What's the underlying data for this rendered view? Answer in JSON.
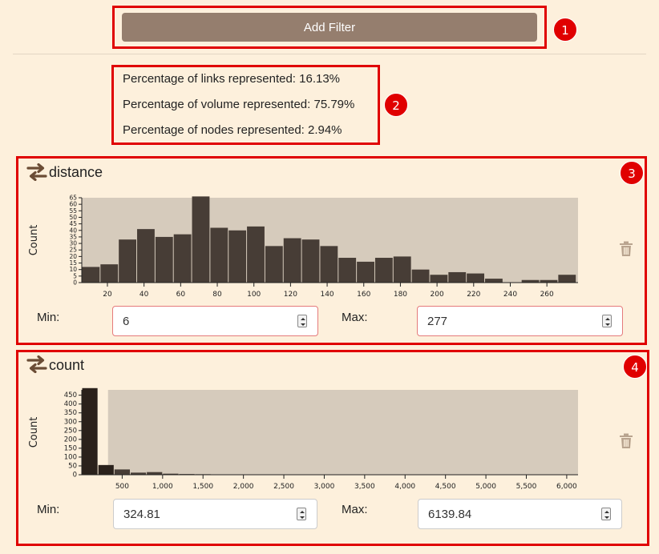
{
  "toolbar": {
    "add_filter_label": "Add Filter"
  },
  "badges": [
    "1",
    "2",
    "3",
    "4"
  ],
  "stats": {
    "links": "Percentage of links represented: 16.13%",
    "volume": "Percentage of volume represented: 75.79%",
    "nodes": "Percentage of nodes represented: 2.94%"
  },
  "filters": [
    {
      "title": "distance",
      "min_label": "Min:",
      "max_label": "Max:",
      "min_value": "6",
      "max_value": "277"
    },
    {
      "title": "count",
      "min_label": "Min:",
      "max_label": "Max:",
      "min_value": "324.81",
      "max_value": "6139.84"
    }
  ],
  "colors": {
    "accent": "#957e6e",
    "bar": "#473d36",
    "plot_bg": "#d6cbbc",
    "selected_bar": "#2a211b",
    "highlight": "#e00000",
    "icon": "#6b4c35",
    "trash": "#b9a48f"
  },
  "chart_data": [
    {
      "type": "bar",
      "title": "",
      "xlabel": "distance",
      "ylabel": "Count",
      "bin_width": 10,
      "x_start": 6,
      "xlim": [
        6,
        277
      ],
      "ylim": [
        0,
        65
      ],
      "x_ticks": [
        "20",
        "40",
        "60",
        "80",
        "100",
        "120",
        "140",
        "160",
        "180",
        "200",
        "220",
        "240",
        "260"
      ],
      "x_tick_values": [
        20,
        40,
        60,
        80,
        100,
        120,
        140,
        160,
        180,
        200,
        220,
        240,
        260
      ],
      "y_ticks": [
        "0",
        "5",
        "10",
        "15",
        "20",
        "25",
        "30",
        "35",
        "40",
        "45",
        "50",
        "55",
        "60",
        "65"
      ],
      "y_tick_values": [
        0,
        5,
        10,
        15,
        20,
        25,
        30,
        35,
        40,
        45,
        50,
        55,
        60,
        65
      ],
      "values": [
        12,
        14,
        33,
        41,
        35,
        37,
        66,
        42,
        40,
        43,
        28,
        34,
        33,
        28,
        19,
        16,
        19,
        20,
        10,
        6,
        8,
        7,
        3,
        0,
        2,
        2,
        6
      ]
    },
    {
      "type": "bar",
      "title": "",
      "xlabel": "count",
      "ylabel": "Count",
      "bin_width": 200,
      "x_start": 0,
      "xlim": [
        0,
        6139.84
      ],
      "ylim": [
        0,
        480
      ],
      "selected_range": [
        324.81,
        6139.84
      ],
      "x_ticks": [
        "500",
        "1,000",
        "1,500",
        "2,000",
        "2,500",
        "3,000",
        "3,500",
        "4,000",
        "4,500",
        "5,000",
        "5,500",
        "6,000"
      ],
      "x_tick_values": [
        500,
        1000,
        1500,
        2000,
        2500,
        3000,
        3500,
        4000,
        4500,
        5000,
        5500,
        6000
      ],
      "y_ticks": [
        "0",
        "50",
        "100",
        "150",
        "200",
        "250",
        "300",
        "350",
        "400",
        "450"
      ],
      "y_tick_values": [
        0,
        50,
        100,
        150,
        200,
        250,
        300,
        350,
        400,
        450
      ],
      "values": [
        490,
        55,
        30,
        12,
        15,
        6,
        4,
        3,
        2,
        1,
        1,
        1,
        0,
        1,
        0,
        0,
        1,
        0,
        0,
        0,
        0,
        0,
        0,
        0,
        0,
        0,
        0,
        0,
        0,
        0,
        0
      ]
    }
  ]
}
